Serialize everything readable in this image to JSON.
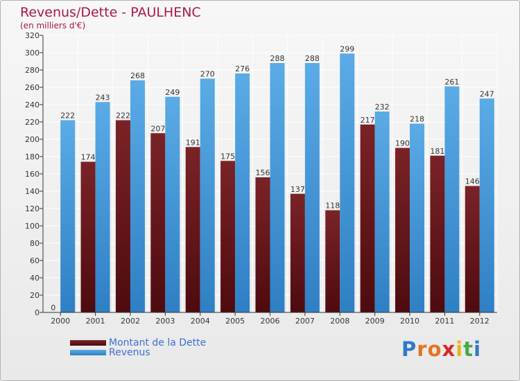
{
  "header": {
    "title": "Revenus/Dette - PAULHENC",
    "subtitle": "(en milliers d'€)"
  },
  "legend": {
    "debt_label": "Montant de la Dette",
    "revenue_label": "Revenus"
  },
  "logo": {
    "letters": [
      "P",
      "r",
      "o",
      "x",
      "i",
      "t",
      "i"
    ],
    "colors": [
      "#2f79c7",
      "#e7731f",
      "#e7731f",
      "#d52a2a",
      "#e9b51a",
      "#48a84a",
      "#2f79c7"
    ]
  },
  "colors": {
    "debt": "#7a2327",
    "debt_dark": "#4d0b0f",
    "revenue": "#5aabe6",
    "revenue_dark": "#2f7fc4",
    "axis": "#333333",
    "grid": "#ffffff"
  },
  "chart_data": {
    "type": "bar",
    "title": "Revenus/Dette - PAULHENC",
    "subtitle": "(en milliers d'€)",
    "xlabel": "",
    "ylabel": "",
    "ylim": [
      0,
      320
    ],
    "y_ticks": [
      0,
      20,
      40,
      60,
      80,
      100,
      120,
      140,
      160,
      180,
      200,
      220,
      240,
      260,
      280,
      300,
      320
    ],
    "grid": true,
    "legend_position": "bottom-left",
    "categories": [
      "2000",
      "2001",
      "2002",
      "2003",
      "2004",
      "2005",
      "2006",
      "2007",
      "2008",
      "2009",
      "2010",
      "2011",
      "2012"
    ],
    "series": [
      {
        "name": "Montant de la Dette",
        "values": [
          0,
          174,
          222,
          207,
          191,
          175,
          156,
          137,
          118,
          217,
          190,
          181,
          146
        ]
      },
      {
        "name": "Revenus",
        "values": [
          222,
          243,
          268,
          249,
          270,
          276,
          288,
          288,
          299,
          232,
          218,
          261,
          247
        ]
      }
    ]
  }
}
